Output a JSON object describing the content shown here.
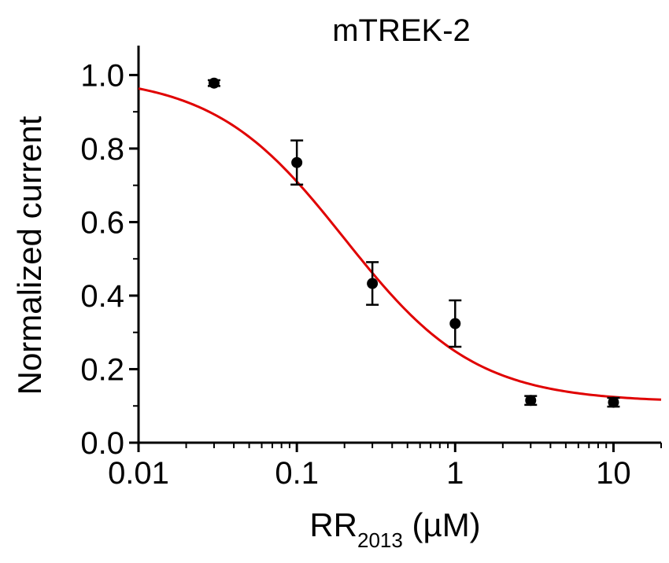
{
  "chart_data": {
    "type": "scatter",
    "title": "mTREK-2",
    "xlabel_main": "RR",
    "xlabel_sub": "2013",
    "xlabel_unit": " (µM)",
    "ylabel": "Normalized current",
    "x_scale": "log",
    "xlim": [
      0.01,
      20
    ],
    "ylim": [
      0.0,
      1.08
    ],
    "x_ticks": [
      0.01,
      0.1,
      1,
      10
    ],
    "x_tick_labels": [
      "0.01",
      "0.1",
      "1",
      "10"
    ],
    "y_ticks": [
      0.0,
      0.2,
      0.4,
      0.6,
      0.8,
      1.0
    ],
    "y_tick_labels": [
      "0.0",
      "0.2",
      "0.4",
      "0.6",
      "0.8",
      "1.0"
    ],
    "grid": false,
    "points": [
      {
        "x": 0.03,
        "y": 0.978,
        "err": 0.008
      },
      {
        "x": 0.1,
        "y": 0.762,
        "err": 0.06
      },
      {
        "x": 0.3,
        "y": 0.433,
        "err": 0.058
      },
      {
        "x": 1,
        "y": 0.324,
        "err": 0.063
      },
      {
        "x": 3,
        "y": 0.115,
        "err": 0.012
      },
      {
        "x": 10,
        "y": 0.11,
        "err": 0.012
      }
    ],
    "fit": {
      "model": "hill",
      "bottom": 0.11,
      "top": 1.0,
      "ic50": 0.2,
      "hill": 1.05,
      "color": "#e00000"
    },
    "point_color": "#000000"
  }
}
